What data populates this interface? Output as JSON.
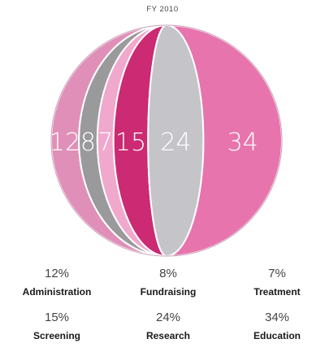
{
  "chart_data": {
    "type": "pie",
    "title": "FY 2010",
    "categories": [
      "Administration",
      "Fundraising",
      "Treatment",
      "Screening",
      "Research",
      "Education"
    ],
    "values": [
      12,
      8,
      7,
      15,
      24,
      34
    ],
    "slice_labels": [
      "12",
      "8",
      "7",
      "15",
      "24",
      "34"
    ],
    "legend": [
      {
        "pct": "12%",
        "name": "Administration"
      },
      {
        "pct": "8%",
        "name": "Fundraising"
      },
      {
        "pct": "7%",
        "name": "Treatment"
      },
      {
        "pct": "15%",
        "name": "Screening"
      },
      {
        "pct": "24%",
        "name": "Research"
      },
      {
        "pct": "34%",
        "name": "Education"
      }
    ],
    "colors": [
      "#e090b8",
      "#9a9a9c",
      "#f0a8cc",
      "#cc2a72",
      "#c5c4c9",
      "#e874ad"
    ],
    "legend_placement": "bottom"
  }
}
